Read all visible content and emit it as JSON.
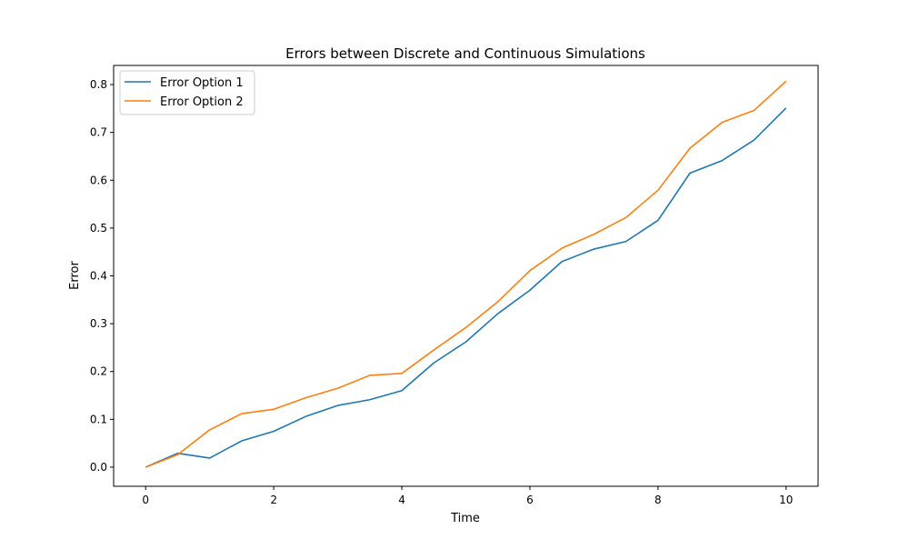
{
  "chart_data": {
    "type": "line",
    "title": "Errors between Discrete and Continuous Simulations",
    "xlabel": "Time",
    "ylabel": "Error",
    "xlim": [
      -0.5,
      10.5
    ],
    "ylim": [
      -0.04,
      0.84
    ],
    "xticks": [
      0,
      2,
      4,
      6,
      8,
      10
    ],
    "yticks": [
      0.0,
      0.1,
      0.2,
      0.3,
      0.4,
      0.5,
      0.6,
      0.7,
      0.8
    ],
    "xtick_labels": [
      "0",
      "2",
      "4",
      "6",
      "8",
      "10"
    ],
    "ytick_labels": [
      "0.0",
      "0.1",
      "0.2",
      "0.3",
      "0.4",
      "0.5",
      "0.6",
      "0.7",
      "0.8"
    ],
    "grid": false,
    "legend_position": "upper left",
    "x": [
      0,
      0.5,
      1,
      1.5,
      2,
      2.5,
      3,
      3.5,
      4,
      4.5,
      5,
      5.5,
      6,
      6.5,
      7,
      7.5,
      8,
      8.5,
      9,
      9.5,
      10
    ],
    "series": [
      {
        "name": "Error Option 1",
        "color": "#1f77b4",
        "values": [
          0.0,
          0.029,
          0.019,
          0.055,
          0.075,
          0.106,
          0.129,
          0.141,
          0.16,
          0.218,
          0.262,
          0.321,
          0.37,
          0.43,
          0.456,
          0.472,
          0.516,
          0.615,
          0.641,
          0.684,
          0.751
        ]
      },
      {
        "name": "Error Option 2",
        "color": "#ff7f0e",
        "values": [
          0.0,
          0.026,
          0.078,
          0.112,
          0.121,
          0.145,
          0.165,
          0.192,
          0.196,
          0.245,
          0.292,
          0.346,
          0.411,
          0.458,
          0.487,
          0.522,
          0.579,
          0.667,
          0.721,
          0.746,
          0.807
        ]
      }
    ]
  }
}
